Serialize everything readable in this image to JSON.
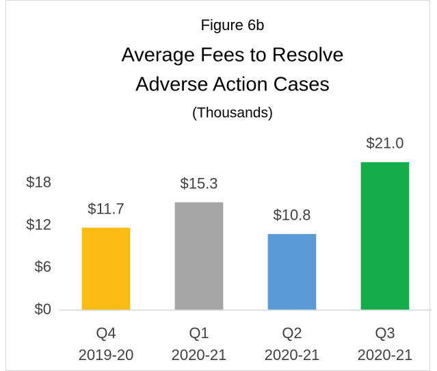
{
  "chart_data": {
    "type": "bar",
    "figure_label": "Figure 6b",
    "title": [
      "Average Fees to Resolve",
      "Adverse Action Cases"
    ],
    "subtitle": "(Thousands)",
    "categories": [
      [
        "Q4",
        "2019-20"
      ],
      [
        "Q1",
        "2020-21"
      ],
      [
        "Q2",
        "2020-21"
      ],
      [
        "Q3",
        "2020-21"
      ]
    ],
    "values": [
      11.7,
      15.3,
      10.8,
      21.0
    ],
    "value_labels": [
      "$11.7",
      "$15.3",
      "$10.8",
      "$21.0"
    ],
    "colors": [
      "#fbbc13",
      "#a5a5a5",
      "#5b9bd5",
      "#14ad4b"
    ],
    "ylim": [
      0,
      24
    ],
    "yticks": [
      {
        "value": 0,
        "label": "$0"
      },
      {
        "value": 6,
        "label": "$6"
      },
      {
        "value": 12,
        "label": "$12"
      },
      {
        "value": 18,
        "label": "$18"
      }
    ],
    "grid": false
  }
}
